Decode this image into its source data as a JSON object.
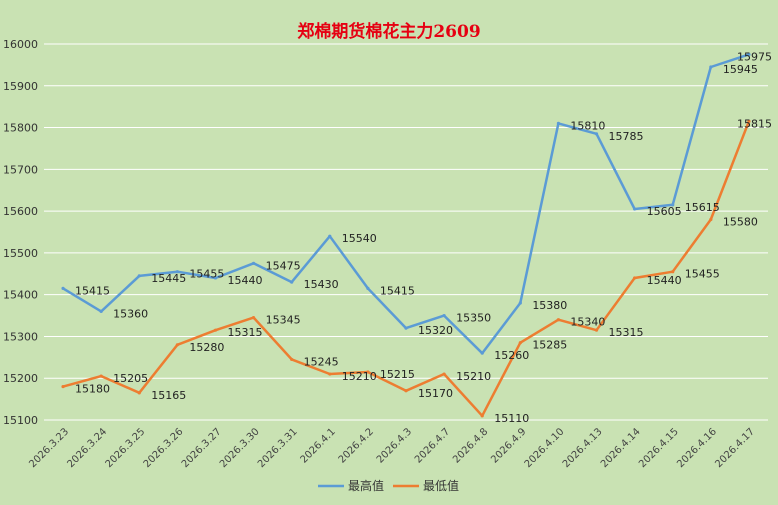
{
  "chart_data": {
    "type": "line",
    "title": "郑棉期货棉花主力2609",
    "colors": {
      "background": "#c9e2b3",
      "grid": "#ffffff",
      "title": "#e60012"
    },
    "categories": [
      "2026.3.23",
      "2026.3.24",
      "2026.3.25",
      "2026.3.26",
      "2026.3.27",
      "2026.3.30",
      "2026.3.31",
      "2026.4.1",
      "2026.4.2",
      "2026.4.3",
      "2026.4.7",
      "2026.4.8",
      "2026.4.9",
      "2026.4.10",
      "2026.4.13",
      "2026.4.14",
      "2026.4.15",
      "2026.4.16",
      "2026.4.17"
    ],
    "y_ticks": [
      15100,
      15200,
      15300,
      15400,
      15500,
      15600,
      15700,
      15800,
      15900,
      16000
    ],
    "ylim": [
      15090,
      16010
    ],
    "grid": true,
    "legend": "bottom",
    "series": [
      {
        "name": "最高值",
        "color": "#5b9bd5",
        "values": [
          15415,
          15360,
          15445,
          15455,
          15440,
          15475,
          15430,
          15540,
          15415,
          15320,
          15350,
          15260,
          15380,
          15810,
          15785,
          15605,
          15615,
          15945,
          15975
        ]
      },
      {
        "name": "最低值",
        "color": "#ed7d31",
        "values": [
          15180,
          15205,
          15165,
          15280,
          15315,
          15345,
          15245,
          15210,
          15215,
          15170,
          15210,
          15110,
          15285,
          15340,
          15315,
          15440,
          15455,
          15580,
          15815
        ]
      }
    ]
  }
}
